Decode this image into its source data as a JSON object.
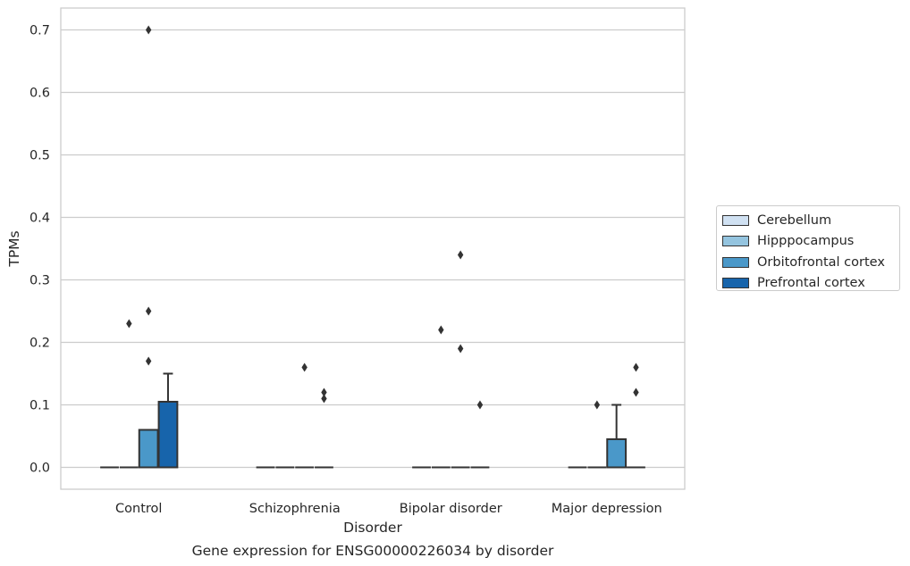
{
  "chart_data": {
    "type": "box",
    "title": "Gene expression for ENSG00000226034 by disorder",
    "xlabel": "Disorder",
    "ylabel": "TPMs",
    "ylim": [
      -0.035,
      0.735
    ],
    "yticks": [
      "0.0",
      "0.1",
      "0.2",
      "0.3",
      "0.4",
      "0.5",
      "0.6",
      "0.7"
    ],
    "ytick_values": [
      0,
      0.1,
      0.2,
      0.3,
      0.4,
      0.5,
      0.6,
      0.7
    ],
    "categories": [
      "Control",
      "Schizophrenia",
      "Bipolar disorder",
      "Major depression"
    ],
    "grid": "horizontal",
    "legend_position": "right",
    "series": [
      {
        "name": "Cerebellum",
        "color": "#d0e1f2",
        "boxes": [
          {
            "q1": 0,
            "median": 0,
            "q3": 0,
            "whisker_low": 0,
            "whisker_high": 0,
            "outliers": []
          },
          {
            "q1": 0,
            "median": 0,
            "q3": 0,
            "whisker_low": 0,
            "whisker_high": 0,
            "outliers": []
          },
          {
            "q1": 0,
            "median": 0,
            "q3": 0,
            "whisker_low": 0,
            "whisker_high": 0,
            "outliers": []
          },
          {
            "q1": 0,
            "median": 0,
            "q3": 0,
            "whisker_low": 0,
            "whisker_high": 0,
            "outliers": []
          }
        ]
      },
      {
        "name": "Hipppocampus",
        "color": "#94c4df",
        "boxes": [
          {
            "q1": 0,
            "median": 0,
            "q3": 0,
            "whisker_low": 0,
            "whisker_high": 0,
            "outliers": [
              0.23
            ]
          },
          {
            "q1": 0,
            "median": 0,
            "q3": 0,
            "whisker_low": 0,
            "whisker_high": 0,
            "outliers": []
          },
          {
            "q1": 0,
            "median": 0,
            "q3": 0,
            "whisker_low": 0,
            "whisker_high": 0,
            "outliers": [
              0.22
            ]
          },
          {
            "q1": 0,
            "median": 0,
            "q3": 0,
            "whisker_low": 0,
            "whisker_high": 0,
            "outliers": [
              0.1
            ]
          }
        ]
      },
      {
        "name": "Orbitofrontal cortex",
        "color": "#4a98c9",
        "boxes": [
          {
            "q1": 0,
            "median": 0,
            "q3": 0.06,
            "whisker_low": 0,
            "whisker_high": 0.06,
            "outliers": [
              0.7,
              0.25,
              0.17
            ]
          },
          {
            "q1": 0,
            "median": 0,
            "q3": 0,
            "whisker_low": 0,
            "whisker_high": 0,
            "outliers": [
              0.16
            ]
          },
          {
            "q1": 0,
            "median": 0,
            "q3": 0,
            "whisker_low": 0,
            "whisker_high": 0,
            "outliers": [
              0.34,
              0.19
            ]
          },
          {
            "q1": 0,
            "median": 0,
            "q3": 0.045,
            "whisker_low": 0,
            "whisker_high": 0.1,
            "outliers": []
          }
        ]
      },
      {
        "name": "Prefrontal cortex",
        "color": "#1764ab",
        "boxes": [
          {
            "q1": 0,
            "median": 0,
            "q3": 0.105,
            "whisker_low": 0,
            "whisker_high": 0.15,
            "outliers": []
          },
          {
            "q1": 0,
            "median": 0,
            "q3": 0,
            "whisker_low": 0,
            "whisker_high": 0,
            "outliers": [
              0.12,
              0.11
            ]
          },
          {
            "q1": 0,
            "median": 0,
            "q3": 0,
            "whisker_low": 0,
            "whisker_high": 0,
            "outliers": [
              0.1
            ]
          },
          {
            "q1": 0,
            "median": 0,
            "q3": 0,
            "whisker_low": 0,
            "whisker_high": 0,
            "outliers": [
              0.16,
              0.12
            ]
          }
        ]
      }
    ]
  }
}
